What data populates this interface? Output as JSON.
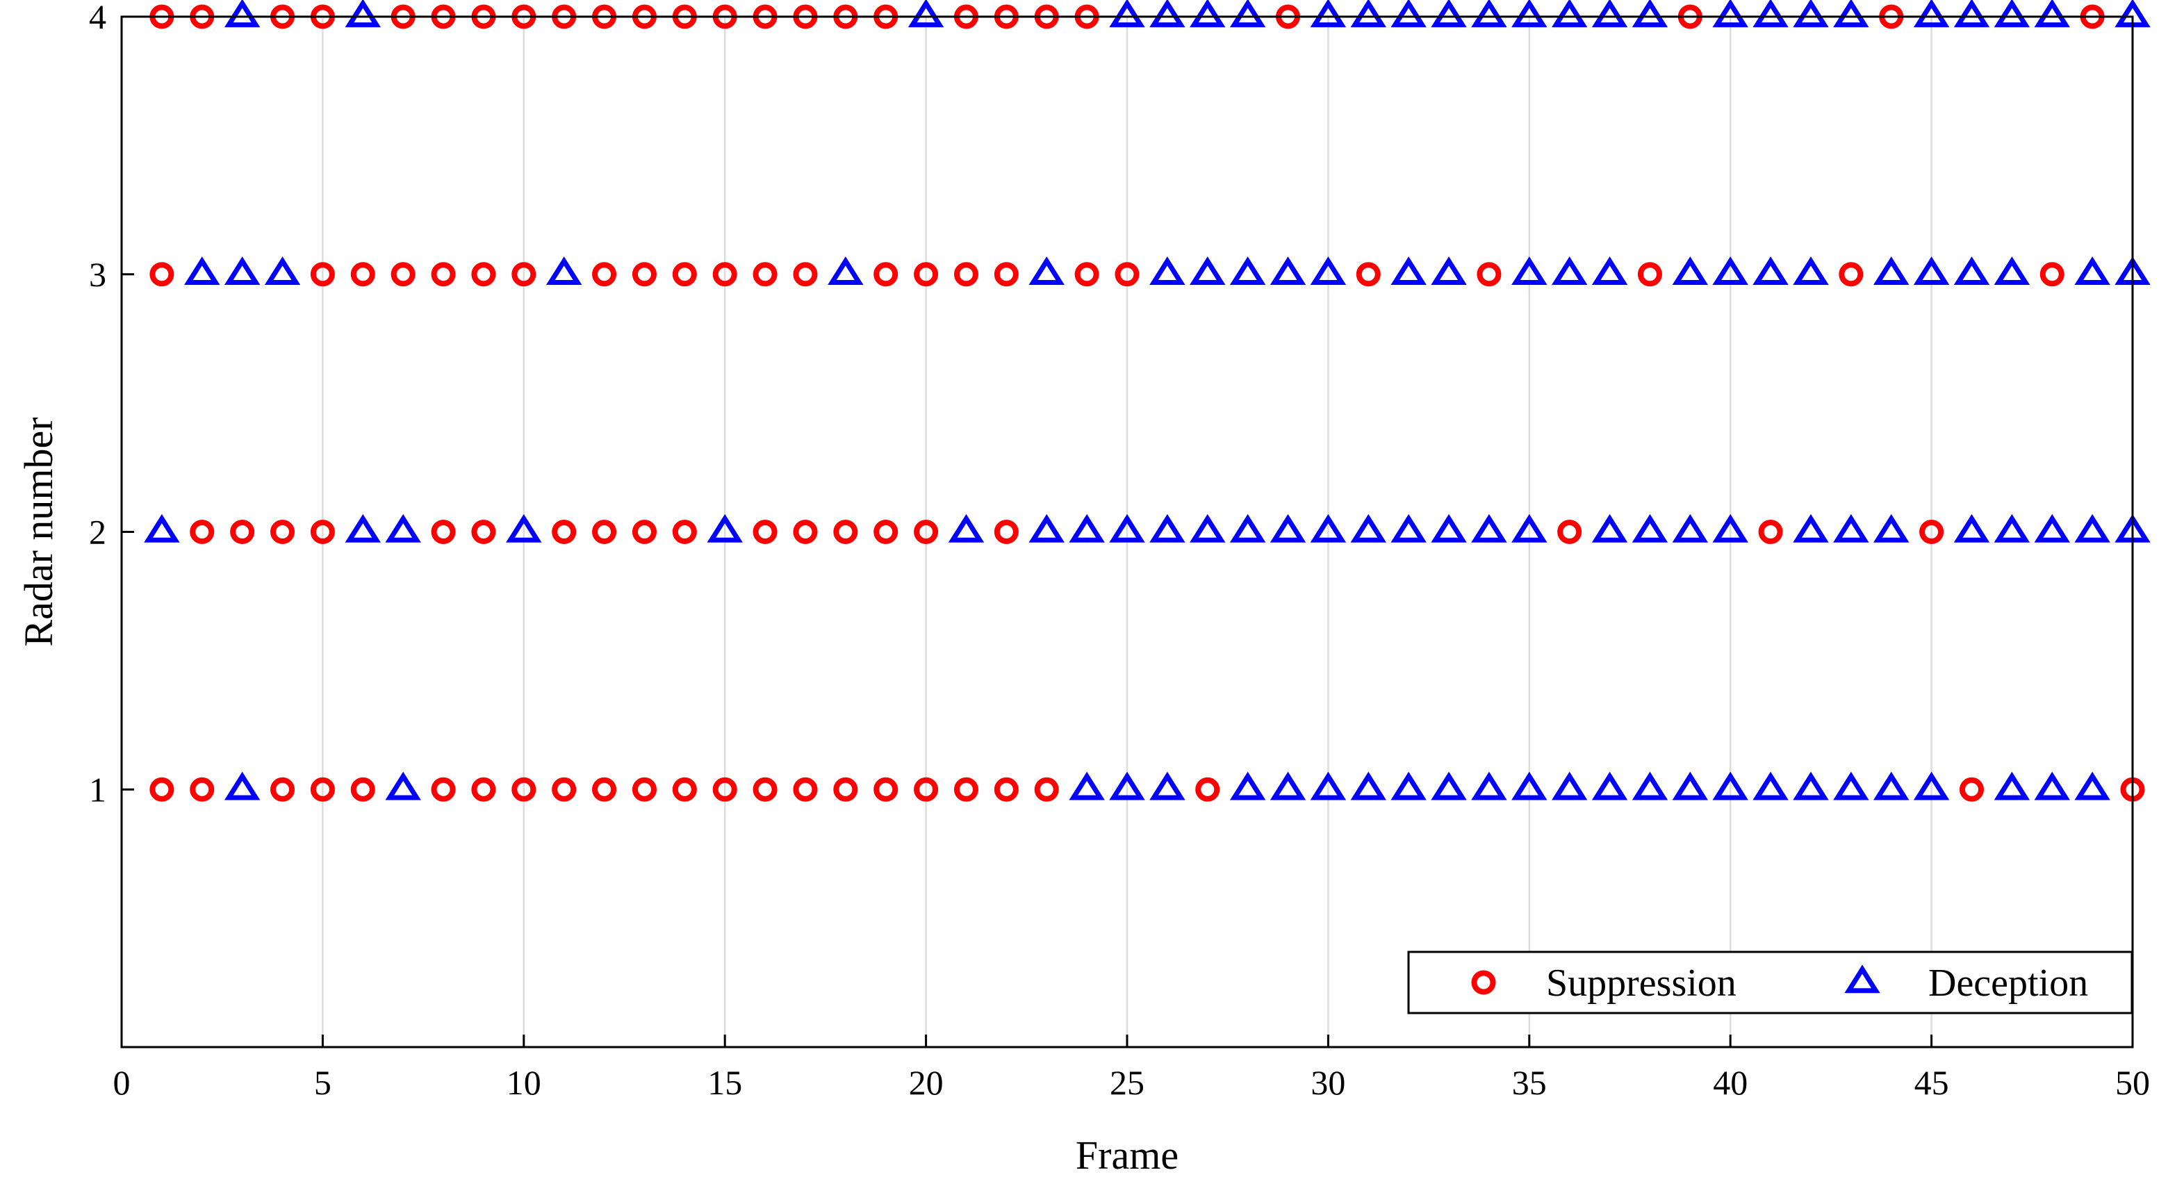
{
  "chart_data": {
    "type": "scatter",
    "title": "",
    "xlabel": "Frame",
    "ylabel": "Radar number",
    "xlim": [
      0,
      50
    ],
    "ylim": [
      0,
      4
    ],
    "xticks": [
      0,
      5,
      10,
      15,
      20,
      25,
      30,
      35,
      40,
      45,
      50
    ],
    "yticks": [
      1,
      2,
      3,
      4
    ],
    "grid": "vertical",
    "legend_position": "bottom-right",
    "series": [
      {
        "name": "Suppression",
        "marker": "circle",
        "color": "#ff0000",
        "points": {
          "1": [
            1,
            2,
            4,
            5,
            6,
            8,
            9,
            10,
            11,
            12,
            13,
            14,
            15,
            16,
            17,
            18,
            19,
            20,
            21,
            22,
            23,
            27,
            46,
            50
          ],
          "2": [
            2,
            3,
            4,
            5,
            8,
            9,
            11,
            12,
            13,
            14,
            16,
            17,
            18,
            19,
            20,
            22,
            36,
            41,
            45
          ],
          "3": [
            1,
            5,
            6,
            7,
            8,
            9,
            10,
            12,
            13,
            14,
            15,
            16,
            17,
            19,
            20,
            21,
            22,
            24,
            25,
            31,
            34,
            38,
            43,
            48
          ],
          "4": [
            1,
            2,
            4,
            5,
            7,
            8,
            9,
            10,
            11,
            12,
            13,
            14,
            15,
            16,
            17,
            18,
            19,
            21,
            22,
            23,
            24,
            29,
            39,
            44,
            49
          ]
        }
      },
      {
        "name": "Deception",
        "marker": "triangle",
        "color": "#0000ff",
        "points": {
          "1": [
            3,
            7,
            24,
            25,
            26,
            28,
            29,
            30,
            31,
            32,
            33,
            34,
            35,
            36,
            37,
            38,
            39,
            40,
            41,
            42,
            43,
            44,
            45,
            47,
            48,
            49
          ],
          "2": [
            1,
            6,
            7,
            10,
            15,
            21,
            23,
            24,
            25,
            26,
            27,
            28,
            29,
            30,
            31,
            32,
            33,
            34,
            35,
            37,
            38,
            39,
            40,
            42,
            43,
            44,
            46,
            47,
            48,
            49,
            50
          ],
          "3": [
            2,
            3,
            4,
            11,
            18,
            23,
            26,
            27,
            28,
            29,
            30,
            32,
            33,
            35,
            36,
            37,
            39,
            40,
            41,
            42,
            44,
            45,
            46,
            47,
            49,
            50
          ],
          "4": [
            3,
            6,
            20,
            25,
            26,
            27,
            28,
            30,
            31,
            32,
            33,
            34,
            35,
            36,
            37,
            38,
            40,
            41,
            42,
            43,
            45,
            46,
            47,
            48,
            50
          ]
        }
      }
    ]
  }
}
